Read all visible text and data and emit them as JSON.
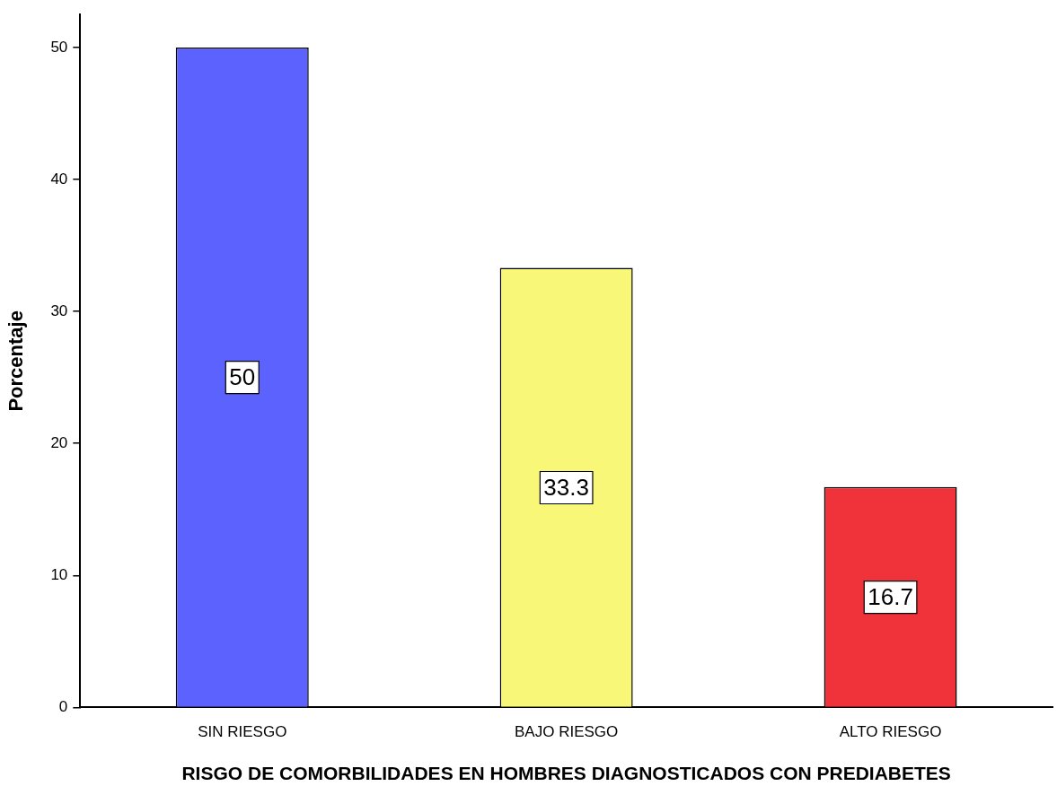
{
  "chart_data": {
    "type": "bar",
    "xlabel": "RISGO DE COMORBILIDADES EN HOMBRES DIAGNOSTICADOS CON PREDIABETES",
    "ylabel": "Porcentaje",
    "categories": [
      "SIN RIESGO",
      "BAJO RIESGO",
      "ALTO RIESGO"
    ],
    "values": [
      50,
      33.3,
      16.7
    ],
    "colors": [
      "#5c62fe",
      "#f8f778",
      "#f0333a"
    ],
    "ylim": [
      0,
      52.5
    ],
    "yticks": [
      0,
      10,
      20,
      30,
      40,
      50
    ],
    "data_labels": true
  }
}
